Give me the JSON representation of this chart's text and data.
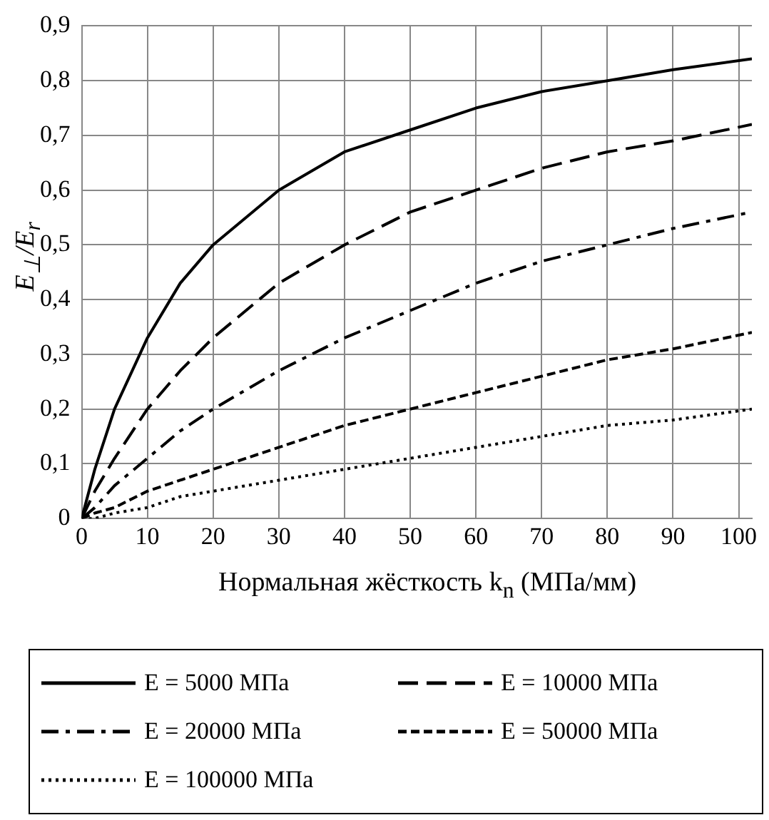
{
  "chart_data": {
    "type": "line",
    "xlabel": "Нормальная жёсткость k$_{n}$ (МПа/мм)",
    "ylabel": "E$_{⊥}$/E$_{r}$",
    "x": [
      0,
      2,
      5,
      10,
      15,
      20,
      30,
      40,
      50,
      60,
      70,
      80,
      90,
      102
    ],
    "series": [
      {
        "name": "E = 5000 МПа",
        "color": "#000000",
        "line_style": "solid",
        "values": [
          0,
          0.09,
          0.2,
          0.33,
          0.43,
          0.5,
          0.6,
          0.67,
          0.71,
          0.75,
          0.78,
          0.8,
          0.82,
          0.84
        ]
      },
      {
        "name": "E = 10000 МПа",
        "color": "#000000",
        "line_style": "dashed",
        "values": [
          0,
          0.05,
          0.11,
          0.2,
          0.27,
          0.33,
          0.43,
          0.5,
          0.56,
          0.6,
          0.64,
          0.67,
          0.69,
          0.72
        ]
      },
      {
        "name": "E = 20000 МПа",
        "color": "#000000",
        "line_style": "dashed",
        "values": [
          0,
          0.02,
          0.06,
          0.11,
          0.16,
          0.2,
          0.27,
          0.33,
          0.38,
          0.43,
          0.47,
          0.5,
          0.53,
          0.56
        ]
      },
      {
        "name": "E = 50000 МПа",
        "color": "#000000",
        "line_style": "dashed",
        "values": [
          0,
          0.01,
          0.02,
          0.05,
          0.07,
          0.09,
          0.13,
          0.17,
          0.2,
          0.23,
          0.26,
          0.29,
          0.31,
          0.34
        ]
      },
      {
        "name": "E = 100000 МПа",
        "color": "#000000",
        "line_style": "dotted",
        "values": [
          0,
          0,
          0.01,
          0.02,
          0.04,
          0.05,
          0.07,
          0.09,
          0.11,
          0.13,
          0.15,
          0.17,
          0.18,
          0.2
        ]
      }
    ],
    "xlim": [
      0,
      102
    ],
    "xticks": [
      0,
      10,
      20,
      30,
      40,
      50,
      60,
      70,
      80,
      90,
      100
    ],
    "ylim": [
      0,
      0.9
    ],
    "yticks": [
      0,
      {
        "value": 0.1,
        "label": "0,1"
      },
      {
        "value": 0.2,
        "label": "0,2"
      },
      {
        "value": 0.3,
        "label": "0,3"
      },
      {
        "value": 0.4,
        "label": "0,4"
      },
      {
        "value": 0.5,
        "label": "0,5"
      },
      {
        "value": 0.6,
        "label": "0,6"
      },
      {
        "value": 0.7,
        "label": "0,7"
      },
      {
        "value": 0.8,
        "label": "0,8"
      },
      {
        "value": 0.9,
        "label": "0,9"
      }
    ],
    "grid": true,
    "legend": "bottom",
    "marker": "none"
  }
}
